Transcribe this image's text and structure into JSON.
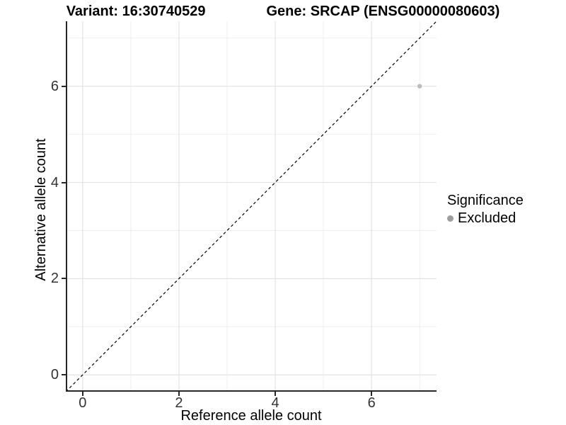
{
  "title": {
    "variant": "Variant: 16:30740529",
    "gene": "Gene: SRCAP (ENSG00000080603)"
  },
  "axes": {
    "x": {
      "label": "Reference allele count",
      "ticks": [
        "0",
        "2",
        "4",
        "6"
      ]
    },
    "y": {
      "label": "Alternative allele count",
      "ticks": [
        "0",
        "2",
        "4",
        "6"
      ]
    }
  },
  "legend": {
    "title": "Significance",
    "items": [
      {
        "label": "Excluded",
        "color": "#9e9e9e"
      }
    ]
  },
  "colors": {
    "background": "#ffffff",
    "grid_major": "#e3e3e3",
    "grid_minor": "#efefef",
    "axis_line": "#262626",
    "tick_label": "#333333",
    "point": "#bcbcbc",
    "identity_line": "#000000"
  },
  "chart_data": {
    "type": "scatter",
    "title": "Variant: 16:30740529   Gene: SRCAP (ENSG00000080603)",
    "xlabel": "Reference allele count",
    "ylabel": "Alternative allele count",
    "xlim": [
      -0.35,
      7.35
    ],
    "ylim": [
      -0.35,
      7.35
    ],
    "x_ticks": [
      0,
      2,
      4,
      6
    ],
    "y_ticks": [
      0,
      2,
      4,
      6
    ],
    "x_minor_ticks": [
      1,
      3,
      5,
      7
    ],
    "y_minor_ticks": [
      1,
      3,
      5,
      7
    ],
    "grid": "on",
    "legend_position": "right",
    "series": [
      {
        "name": "Excluded",
        "color": "#bcbcbc",
        "points": [
          [
            7,
            6
          ]
        ]
      }
    ],
    "reference_line": {
      "kind": "identity y=x",
      "style": "dashed",
      "color": "#000000"
    }
  }
}
